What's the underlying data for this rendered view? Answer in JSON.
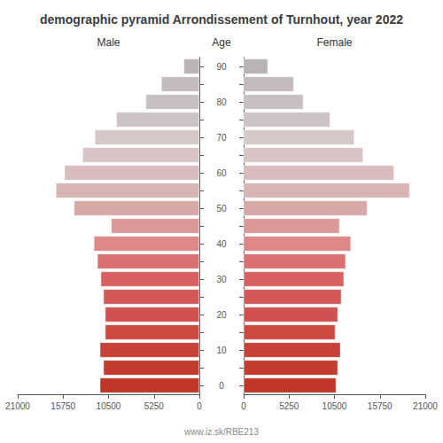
{
  "chart_data": {
    "type": "bar",
    "orientation": "horizontal",
    "title": "demographic pyramid Arrondissement of Turnhout, year 2022",
    "ylabel": "Age",
    "annotations": [
      "www.iz.sk/RBE213"
    ],
    "categories": [
      "0",
      null,
      "10",
      null,
      "20",
      null,
      "30",
      null,
      "40",
      null,
      "50",
      null,
      "60",
      null,
      "70",
      null,
      "80",
      null,
      "90"
    ],
    "series": [
      {
        "name": "Male",
        "values": [
          11500,
          11100,
          11500,
          10900,
          10900,
          11100,
          11400,
          11800,
          12200,
          10200,
          14500,
          16600,
          15600,
          13500,
          12100,
          9600,
          6200,
          4400,
          1800
        ]
      },
      {
        "name": "Female",
        "values": [
          10700,
          10900,
          11200,
          10600,
          10900,
          11300,
          11600,
          11800,
          12400,
          11100,
          14300,
          19200,
          17400,
          13800,
          12800,
          10000,
          6900,
          5800,
          2800
        ]
      }
    ],
    "colors": [
      "#c0372a",
      "#c43c30",
      "#c84038",
      "#cc4a40",
      "#d05050",
      "#d45858",
      "#d86060",
      "#da7070",
      "#dc8888",
      "#da9898",
      "#d8a8a8",
      "#d8b4b4",
      "#d8bcbc",
      "#d8c4c4",
      "#d4c8c8",
      "#ccc4c4",
      "#c8c0c0",
      "#c4bcbc",
      "#b8b4b4"
    ],
    "xlim": [
      0,
      21000
    ],
    "xticks": [
      0,
      5250,
      10500,
      15750,
      21000
    ],
    "grid": false
  }
}
